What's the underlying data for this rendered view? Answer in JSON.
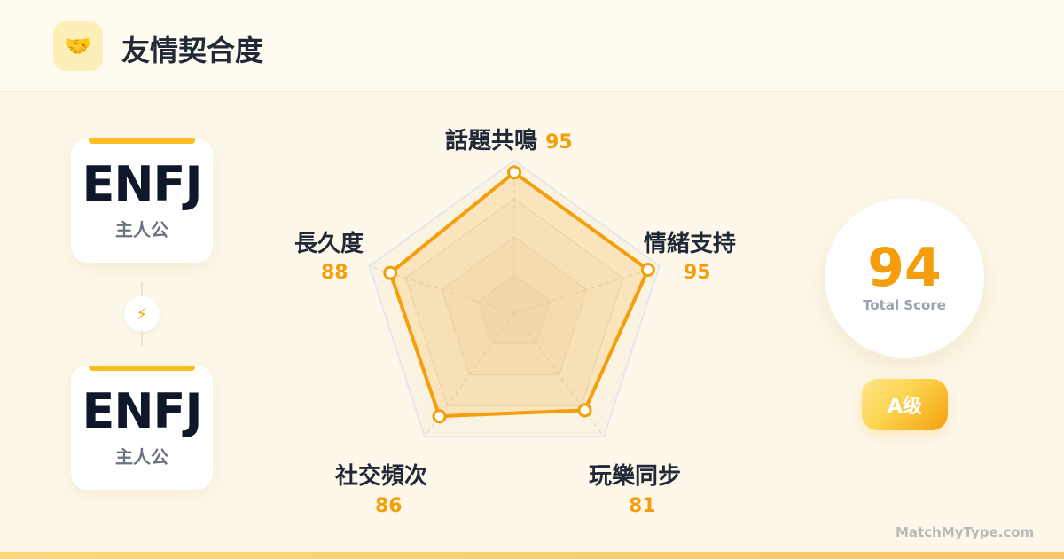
{
  "header": {
    "icon": "handshake-icon",
    "title": "友情契合度"
  },
  "people": [
    {
      "type": "ENFJ",
      "role": "主人公"
    },
    {
      "type": "ENFJ",
      "role": "主人公"
    }
  ],
  "connector_icon": "lightning-icon",
  "chart_data": {
    "type": "radar",
    "categories": [
      "話題共鳴",
      "情緒支持",
      "玩樂同步",
      "社交頻次",
      "長久度"
    ],
    "values": [
      95,
      95,
      81,
      86,
      88
    ],
    "range": [
      0,
      100
    ],
    "color": "#f59e0b"
  },
  "score": {
    "value": "94",
    "caption": "Total Score"
  },
  "grade": "A级",
  "site": "MatchMyType.com"
}
